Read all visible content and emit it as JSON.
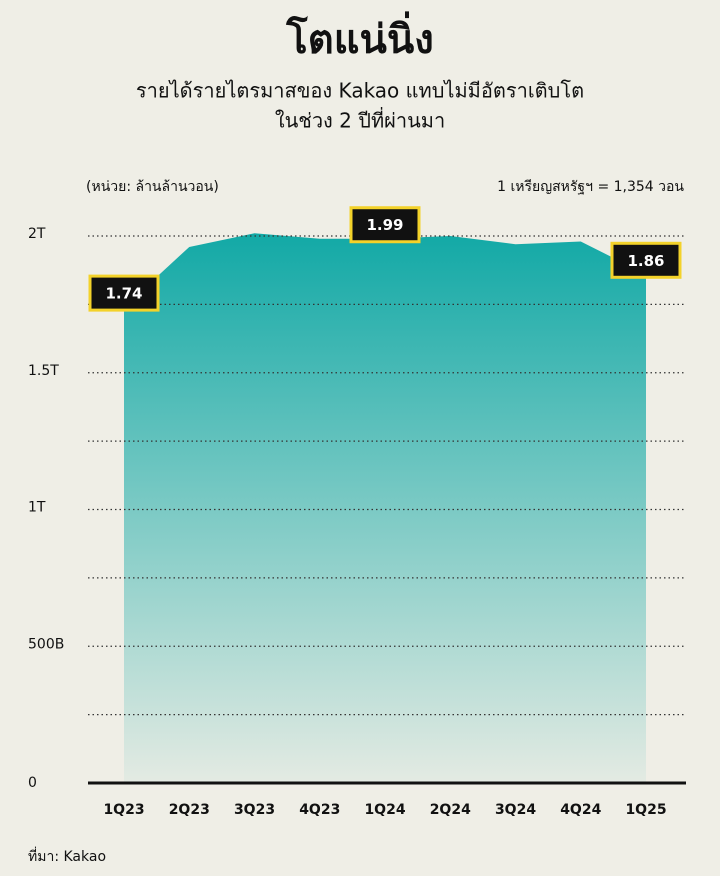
{
  "chart_data": {
    "type": "area",
    "title": "โตแน่นิ่ง",
    "subtitle": [
      "รายได้รายไตรมาสของ Kakao แทบไม่มีอัตราเติบโต",
      "ในช่วง 2 ปีที่ผ่านมา"
    ],
    "unit_note": "(หน่วย: ล้านล้านวอน)",
    "exchange_note": "1 เหรียญสหรัฐฯ = 1,354 วอน",
    "source": "ที่มา: Kakao",
    "categories": [
      "1Q23",
      "2Q23",
      "3Q23",
      "4Q23",
      "1Q24",
      "2Q24",
      "3Q24",
      "4Q24",
      "1Q25"
    ],
    "values": [
      1.74,
      1.96,
      2.01,
      1.99,
      1.99,
      2.0,
      1.97,
      1.98,
      1.86
    ],
    "value_labels": [
      "1.74",
      null,
      null,
      null,
      "1.99",
      null,
      null,
      null,
      "1.86"
    ],
    "color": "#12a9a6",
    "ylim": [
      0,
      2
    ],
    "yticks": [
      0,
      {
        "value": 0.5,
        "label": "500B"
      },
      {
        "value": 1,
        "label": "1T"
      },
      {
        "value": 1.5,
        "label": "1.5T"
      },
      {
        "value": 2,
        "label": "2T"
      }
    ],
    "minor_gridlines": [
      0.25,
      0.75,
      1.25,
      1.75
    ],
    "grid": true
  }
}
